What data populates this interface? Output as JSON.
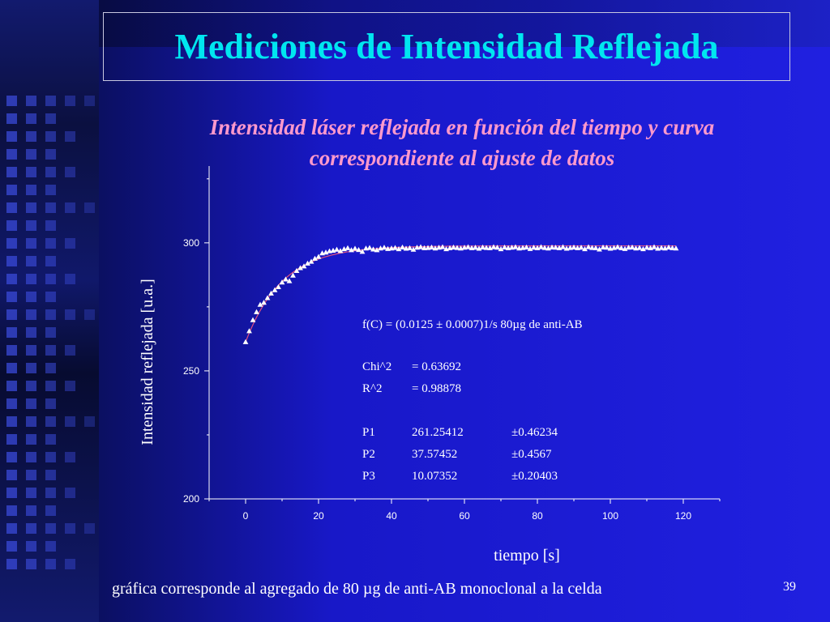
{
  "slide": {
    "title": "Mediciones de Intensidad Reflejada",
    "subtitle_line1": "Intensidad láser reflejada en función del tiempo y curva",
    "subtitle_line2": "correspondiente al ajuste de datos",
    "footer": "gráfica corresponde al agregado de 80 µg de anti-AB monoclonal a la celda",
    "page_number": "39"
  },
  "colors": {
    "title": "#00e6f0",
    "subtitle": "#ff99cc",
    "fit_curve": "#e05080",
    "markers": "#ffffff"
  },
  "chart_data": {
    "type": "scatter",
    "xlabel": "tiempo [s]",
    "ylabel": "Intensidad reflejada [u.a.]",
    "xlim": [
      -10,
      130
    ],
    "ylim": [
      200,
      330
    ],
    "x_ticks": [
      0,
      20,
      40,
      60,
      80,
      100,
      120
    ],
    "y_ticks": [
      200,
      250,
      300
    ],
    "grid": false,
    "marker": "triangle",
    "series": [
      {
        "values": [
          [
            0,
            261.3
          ],
          [
            1,
            265.6
          ],
          [
            2,
            269.9
          ],
          [
            3,
            273.0
          ],
          [
            4,
            275.9
          ],
          [
            5,
            276.7
          ],
          [
            6,
            278.5
          ],
          [
            7,
            280.3
          ],
          [
            8,
            281.6
          ],
          [
            9,
            282.8
          ],
          [
            10,
            284.6
          ],
          [
            11,
            285.8
          ],
          [
            12,
            285.1
          ],
          [
            13,
            287.3
          ],
          [
            14,
            289.1
          ],
          [
            15,
            290.2
          ],
          [
            16,
            290.9
          ],
          [
            17,
            292.0
          ],
          [
            18,
            292.7
          ],
          [
            19,
            293.9
          ],
          [
            20,
            294.6
          ],
          [
            21,
            296.0
          ],
          [
            22,
            296.3
          ],
          [
            23,
            296.8
          ],
          [
            24,
            297.0
          ],
          [
            25,
            297.4
          ],
          [
            26,
            296.9
          ],
          [
            27,
            297.6
          ],
          [
            28,
            298.0
          ],
          [
            29,
            297.2
          ],
          [
            30,
            297.8
          ],
          [
            31,
            297.3
          ],
          [
            32,
            296.6
          ],
          [
            33,
            297.9
          ],
          [
            34,
            298.1
          ],
          [
            35,
            297.5
          ],
          [
            36,
            297.2
          ],
          [
            37,
            297.9
          ],
          [
            38,
            298.2
          ],
          [
            39,
            297.7
          ],
          [
            40,
            297.9
          ],
          [
            41,
            298.1
          ],
          [
            42,
            297.6
          ],
          [
            43,
            298.3
          ],
          [
            44,
            297.8
          ],
          [
            45,
            298.0
          ],
          [
            46,
            297.4
          ],
          [
            47,
            298.2
          ],
          [
            48,
            298.4
          ],
          [
            49,
            298.0
          ],
          [
            50,
            298.1
          ],
          [
            51,
            298.3
          ],
          [
            52,
            297.9
          ],
          [
            53,
            298.2
          ],
          [
            54,
            298.4
          ],
          [
            55,
            297.6
          ],
          [
            56,
            298.0
          ],
          [
            57,
            298.3
          ],
          [
            58,
            298.1
          ],
          [
            59,
            297.9
          ],
          [
            60,
            298.2
          ],
          [
            61,
            298.4
          ],
          [
            62,
            298.0
          ],
          [
            63,
            298.2
          ],
          [
            64,
            297.8
          ],
          [
            65,
            298.3
          ],
          [
            66,
            298.1
          ],
          [
            67,
            298.0
          ],
          [
            68,
            298.4
          ],
          [
            69,
            298.2
          ],
          [
            70,
            297.6
          ],
          [
            71,
            298.3
          ],
          [
            72,
            298.0
          ],
          [
            73,
            298.2
          ],
          [
            74,
            298.4
          ],
          [
            75,
            297.9
          ],
          [
            76,
            298.1
          ],
          [
            77,
            298.3
          ],
          [
            78,
            297.7
          ],
          [
            79,
            298.2
          ],
          [
            80,
            298.0
          ],
          [
            81,
            298.4
          ],
          [
            82,
            298.1
          ],
          [
            83,
            297.9
          ],
          [
            84,
            298.3
          ],
          [
            85,
            298.2
          ],
          [
            86,
            298.0
          ],
          [
            87,
            298.4
          ],
          [
            88,
            297.8
          ],
          [
            89,
            298.1
          ],
          [
            90,
            298.3
          ],
          [
            91,
            298.0
          ],
          [
            92,
            298.2
          ],
          [
            93,
            297.6
          ],
          [
            94,
            298.4
          ],
          [
            95,
            298.1
          ],
          [
            96,
            298.0
          ],
          [
            97,
            297.5
          ],
          [
            98,
            298.3
          ],
          [
            99,
            298.2
          ],
          [
            100,
            297.8
          ],
          [
            101,
            298.1
          ],
          [
            102,
            298.4
          ],
          [
            103,
            298.0
          ],
          [
            104,
            297.7
          ],
          [
            105,
            298.2
          ],
          [
            106,
            298.3
          ],
          [
            107,
            297.9
          ],
          [
            108,
            298.1
          ],
          [
            109,
            297.6
          ],
          [
            110,
            298.2
          ],
          [
            111,
            298.0
          ],
          [
            112,
            298.4
          ],
          [
            113,
            297.8
          ],
          [
            114,
            298.1
          ],
          [
            115,
            297.9
          ],
          [
            116,
            298.3
          ],
          [
            117,
            298.0
          ],
          [
            118,
            297.9
          ]
        ]
      }
    ],
    "fit": {
      "P1": 261.25412,
      "P2": 37.57452,
      "P3": 10.07352,
      "x_range": [
        0,
        118
      ]
    },
    "fit_box": {
      "line1": "f(C) = (0.0125 ± 0.0007)1/s      80µg de anti-AB",
      "rows": [
        [
          "Chi^2",
          "=  0.63692",
          ""
        ],
        [
          "R^2",
          "=  0.98878",
          ""
        ],
        [
          "P1",
          "261.25412",
          "±0.46234"
        ],
        [
          "P2",
          "37.57452",
          "±0.4567"
        ],
        [
          "P3",
          "10.07352",
          "±0.20403"
        ]
      ]
    }
  }
}
